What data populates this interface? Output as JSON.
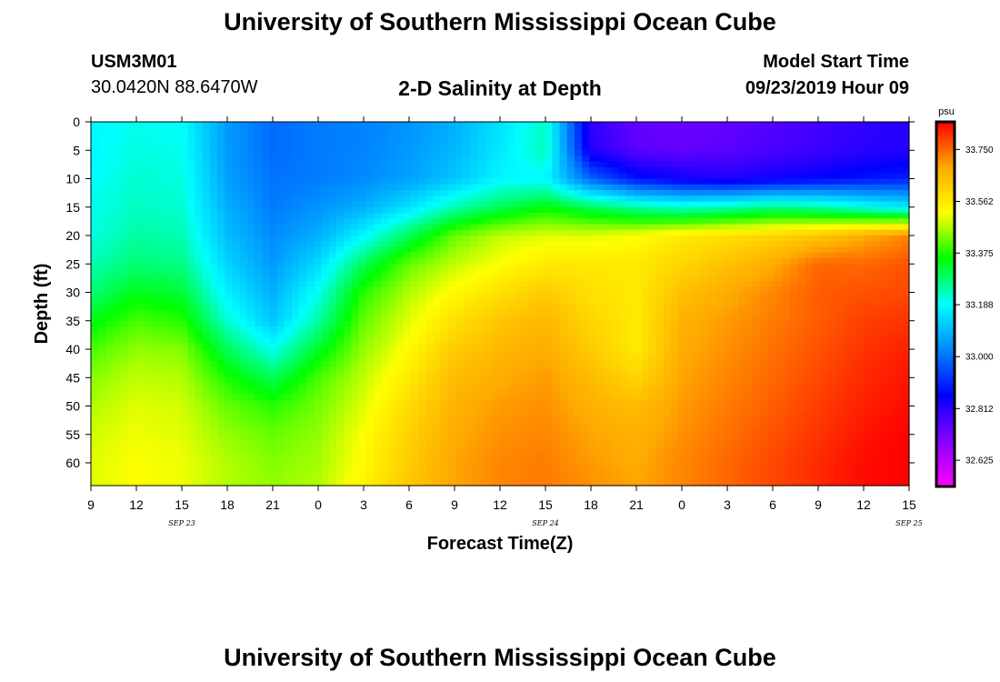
{
  "header": {
    "title": "University of Southern Mississippi Ocean Cube",
    "station_id": "USM3M01",
    "coordinates": "30.0420N 88.6470W",
    "plot_title": "2-D Salinity at Depth",
    "start_label": "Model Start Time",
    "start_value": "09/23/2019 Hour 09"
  },
  "footer": {
    "title": "University of Southern Mississippi Ocean Cube"
  },
  "chart_data": {
    "type": "heatmap",
    "title": "2-D Salinity at Depth",
    "xlabel": "Forecast Time(Z)",
    "ylabel": "Depth (ft)",
    "x_ticks": [
      "9",
      "12",
      "15",
      "18",
      "21",
      "0",
      "3",
      "6",
      "9",
      "12",
      "15",
      "18",
      "21",
      "0",
      "3",
      "6",
      "9",
      "12",
      "15"
    ],
    "date_labels": [
      {
        "label": "SEP 23",
        "hour": 15
      },
      {
        "label": "SEP 24",
        "hour": 39
      },
      {
        "label": "SEP 25",
        "hour": 63
      }
    ],
    "y_ticks": [
      0,
      5,
      10,
      15,
      20,
      25,
      30,
      35,
      40,
      45,
      50,
      55,
      60
    ],
    "x_range_hours": [
      0,
      54
    ],
    "y_range_ft": [
      0,
      64
    ],
    "y_reversed": true,
    "colorbar": {
      "units": "psu",
      "tick_labels": [
        "33.750",
        "33.562",
        "33.375",
        "33.188",
        "33.000",
        "32.812",
        "32.625"
      ],
      "min": 32.53,
      "max": 33.85,
      "colors": [
        "#ff00ff",
        "#8800ff",
        "#0000ff",
        "#0088ff",
        "#00ffff",
        "#00ff00",
        "#ffff00",
        "#ffaa00",
        "#ff0000"
      ]
    },
    "grid": {
      "hours": [
        0,
        3,
        6,
        9,
        12,
        15,
        18,
        21,
        24,
        27,
        30,
        33,
        36,
        39,
        42,
        45,
        48,
        51,
        54
      ],
      "depths": [
        0,
        5,
        10,
        15,
        20,
        25,
        30,
        35,
        40,
        45,
        50,
        55,
        60,
        64
      ],
      "salinity": [
        [
          33.18,
          33.2,
          33.19,
          33.05,
          32.99,
          33.01,
          33.02,
          33.04,
          33.08,
          33.15,
          33.23,
          32.8,
          32.74,
          32.73,
          32.74,
          32.76,
          32.78,
          32.8,
          32.82
        ],
        [
          33.18,
          33.21,
          33.2,
          33.05,
          32.99,
          33.01,
          33.02,
          33.05,
          33.09,
          33.16,
          33.24,
          32.82,
          32.75,
          32.74,
          32.75,
          32.77,
          32.79,
          32.81,
          32.82
        ],
        [
          33.19,
          33.22,
          33.21,
          33.06,
          33.0,
          33.01,
          33.03,
          33.06,
          33.11,
          33.18,
          33.18,
          32.98,
          32.88,
          32.84,
          32.82,
          32.84,
          32.86,
          32.88,
          32.9
        ],
        [
          33.2,
          33.23,
          33.22,
          33.08,
          33.01,
          33.04,
          33.08,
          33.15,
          33.24,
          33.3,
          33.35,
          33.3,
          33.25,
          33.22,
          33.24,
          33.27,
          33.25,
          33.2,
          33.16
        ],
        [
          33.21,
          33.25,
          33.24,
          33.1,
          33.03,
          33.08,
          33.18,
          33.3,
          33.42,
          33.48,
          33.5,
          33.5,
          33.52,
          33.56,
          33.58,
          33.6,
          33.63,
          33.68,
          33.72
        ],
        [
          33.24,
          33.28,
          33.27,
          33.13,
          33.05,
          33.14,
          33.3,
          33.42,
          33.48,
          33.52,
          33.56,
          33.56,
          33.56,
          33.6,
          33.64,
          33.68,
          33.75,
          33.75,
          33.77
        ],
        [
          33.28,
          33.34,
          33.32,
          33.17,
          33.08,
          33.2,
          33.38,
          33.47,
          33.53,
          33.58,
          33.62,
          33.58,
          33.56,
          33.64,
          33.68,
          33.72,
          33.76,
          33.77,
          33.78
        ],
        [
          33.34,
          33.4,
          33.38,
          33.22,
          33.11,
          33.25,
          33.42,
          33.5,
          33.58,
          33.63,
          33.66,
          33.6,
          33.56,
          33.67,
          33.7,
          33.73,
          33.76,
          33.79,
          33.8
        ],
        [
          33.4,
          33.45,
          33.44,
          33.3,
          33.2,
          33.33,
          33.45,
          33.53,
          33.62,
          33.66,
          33.68,
          33.62,
          33.56,
          33.68,
          33.71,
          33.74,
          33.77,
          33.8,
          33.82
        ],
        [
          33.44,
          33.48,
          33.47,
          33.37,
          33.3,
          33.4,
          33.48,
          33.56,
          33.65,
          33.68,
          33.7,
          33.65,
          33.6,
          33.69,
          33.72,
          33.75,
          33.78,
          33.81,
          33.83
        ],
        [
          33.47,
          33.5,
          33.49,
          33.42,
          33.38,
          33.43,
          33.5,
          33.59,
          33.67,
          33.7,
          33.71,
          33.67,
          33.65,
          33.7,
          33.73,
          33.76,
          33.79,
          33.82,
          33.84
        ],
        [
          33.49,
          33.51,
          33.5,
          33.45,
          33.42,
          33.45,
          33.52,
          33.61,
          33.68,
          33.71,
          33.72,
          33.69,
          33.67,
          33.71,
          33.74,
          33.77,
          33.8,
          33.83,
          33.85
        ],
        [
          33.5,
          33.52,
          33.51,
          33.47,
          33.44,
          33.46,
          33.53,
          33.62,
          33.69,
          33.72,
          33.73,
          33.7,
          33.68,
          33.72,
          33.75,
          33.78,
          33.81,
          33.84,
          33.85
        ],
        [
          33.5,
          33.52,
          33.51,
          33.47,
          33.45,
          33.47,
          33.54,
          33.63,
          33.69,
          33.72,
          33.73,
          33.71,
          33.69,
          33.72,
          33.75,
          33.78,
          33.81,
          33.84,
          33.85
        ]
      ]
    }
  }
}
